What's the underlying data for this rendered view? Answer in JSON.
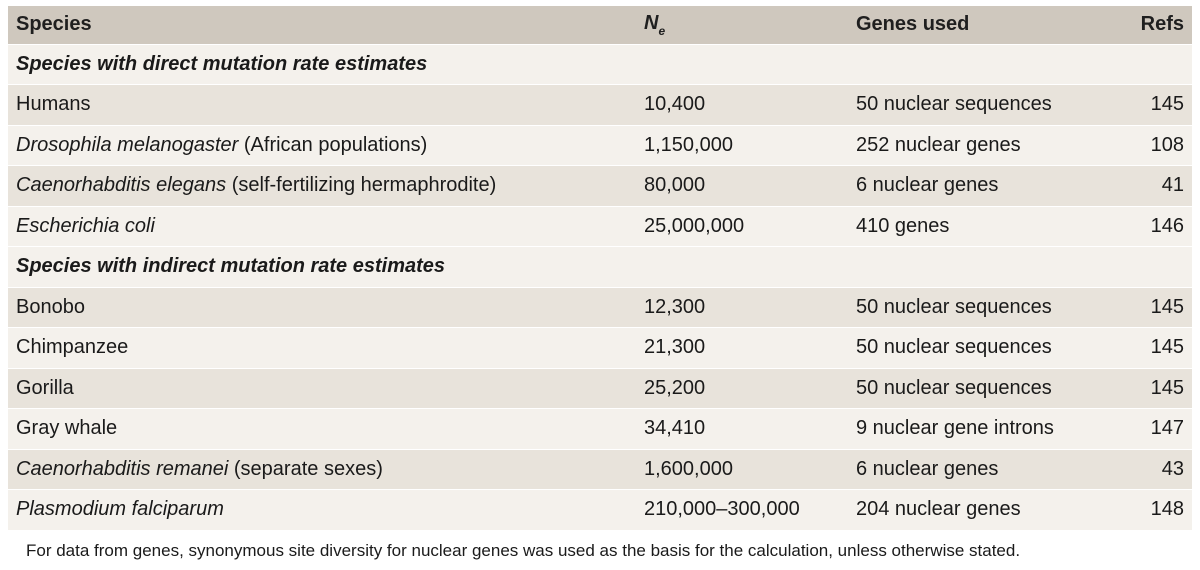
{
  "header": {
    "species": "Species",
    "ne_main": "N",
    "ne_sub": "e",
    "genes_used": "Genes used",
    "refs": "Refs"
  },
  "sections": [
    {
      "title": "Species with direct mutation rate estimates",
      "rows": [
        {
          "species_italic": "",
          "species_plain": "Humans",
          "ne": "10,400",
          "genes": "50 nuclear sequences",
          "refs": "145"
        },
        {
          "species_italic": "Drosophila melanogaster",
          "species_plain": " (African populations)",
          "ne": "1,150,000",
          "genes": "252 nuclear genes",
          "refs": "108"
        },
        {
          "species_italic": "Caenorhabditis elegans",
          "species_plain": " (self-fertilizing hermaphrodite)",
          "ne": "80,000",
          "genes": "6 nuclear genes",
          "refs": "41"
        },
        {
          "species_italic": "Escherichia coli",
          "species_plain": "",
          "ne": "25,000,000",
          "genes": "410 genes",
          "refs": "146"
        }
      ]
    },
    {
      "title": "Species with indirect mutation rate estimates",
      "rows": [
        {
          "species_italic": "",
          "species_plain": "Bonobo",
          "ne": "12,300",
          "genes": "50 nuclear sequences",
          "refs": "145"
        },
        {
          "species_italic": "",
          "species_plain": "Chimpanzee",
          "ne": "21,300",
          "genes": "50 nuclear sequences",
          "refs": "145"
        },
        {
          "species_italic": "",
          "species_plain": "Gorilla",
          "ne": "25,200",
          "genes": "50 nuclear sequences",
          "refs": "145"
        },
        {
          "species_italic": "",
          "species_plain": "Gray whale",
          "ne": "34,410",
          "genes": "9 nuclear gene introns",
          "refs": "147"
        },
        {
          "species_italic": "Caenorhabditis remanei",
          "species_plain": " (separate sexes)",
          "ne": "1,600,000",
          "genes": "6 nuclear genes",
          "refs": "43"
        },
        {
          "species_italic": "Plasmodium falciparum",
          "species_plain": "",
          "ne": "210,000–300,000",
          "genes": "204 nuclear genes",
          "refs": "148"
        }
      ]
    }
  ],
  "footnote": "For data from genes, synonymous site diversity for nuclear genes was used as the basis for the calculation, unless otherwise stated.",
  "colors": {
    "header_bg": "#cfc8be",
    "row_dark": "#e8e3db",
    "row_light": "#f4f1ec"
  }
}
